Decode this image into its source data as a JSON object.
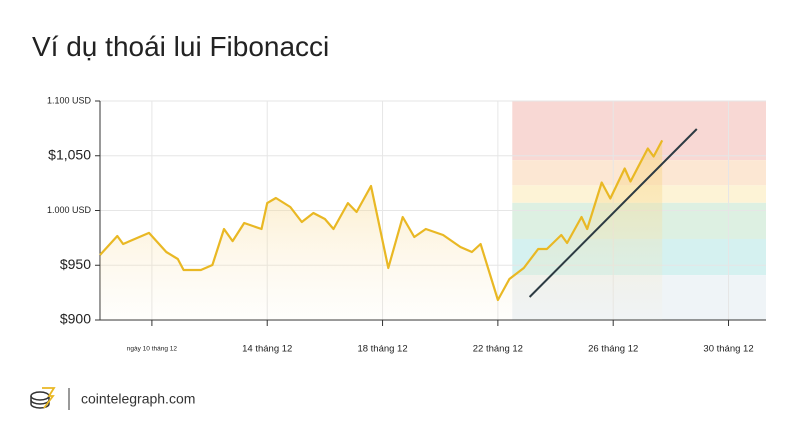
{
  "chart_data": {
    "type": "line",
    "title": "Ví dụ thoái lui Fibonacci",
    "x": [
      8.2,
      8.8,
      9.0,
      9.9,
      10.5,
      10.9,
      11.1,
      11.7,
      12.1,
      12.5,
      12.8,
      13.2,
      13.8,
      14.0,
      14.3,
      14.8,
      15.2,
      15.6,
      16.0,
      16.3,
      16.8,
      17.1,
      17.6,
      18.2,
      18.7,
      19.1,
      19.5,
      20.1,
      20.7,
      21.1,
      21.4,
      22.0,
      22.4,
      22.9,
      23.4,
      23.7,
      24.2,
      24.4,
      24.9,
      25.1,
      25.6,
      25.9,
      26.4,
      26.6,
      27.2,
      27.4,
      27.7
    ],
    "series": [
      {
        "color": "#e9b824",
        "values": [
          959.4,
          976.7,
          969.4,
          979.5,
          962.1,
          955.7,
          945.7,
          945.7,
          950.2,
          983.1,
          972.1,
          988.6,
          983.1,
          1006.8,
          1011.4,
          1003.2,
          989.5,
          997.7,
          992.2,
          983.1,
          1006.8,
          998.6,
          1022.4,
          947.5,
          994.1,
          975.8,
          983.1,
          977.6,
          966.7,
          962.1,
          969.4,
          918.3,
          937.4,
          947.5,
          964.8,
          964.8,
          977.6,
          970.3,
          994.1,
          983.1,
          1025.6,
          1011.0,
          1038.4,
          1026.5,
          1056.6,
          1049.3,
          1064.0
        ]
      }
    ],
    "trend": {
      "color": "#2d3b43",
      "x": [
        23.1,
        28.9
      ],
      "values": [
        921.0,
        1074.4
      ]
    },
    "band_start": 22.5,
    "bands": [
      {
        "from": 1046,
        "to": 1100,
        "color": "#f8d8d4"
      },
      {
        "from": 1023,
        "to": 1046,
        "color": "#fce7d3"
      },
      {
        "from": 1007,
        "to": 1023,
        "color": "#fdf3d6"
      },
      {
        "from": 974,
        "to": 1007,
        "color": "#ddf0e2"
      },
      {
        "from": 941,
        "to": 974,
        "color": "#d5f1f0"
      },
      {
        "from": 900,
        "to": 941,
        "color": "#eff4f7"
      }
    ],
    "xlim": [
      8.2,
      31.3
    ],
    "ylim": [
      900,
      1100
    ],
    "xticks": [
      {
        "value": 10,
        "label": "ngày 10 tháng 12"
      },
      {
        "value": 14,
        "label": "14 tháng 12"
      },
      {
        "value": 18,
        "label": "18 tháng 12"
      },
      {
        "value": 22,
        "label": "22 tháng 12"
      },
      {
        "value": 26,
        "label": "26 tháng 12"
      },
      {
        "value": 30,
        "label": "30 tháng 12"
      }
    ],
    "yticks": [
      {
        "value": 900,
        "label": "$900"
      },
      {
        "value": 950,
        "label": "$950"
      },
      {
        "value": 1000,
        "label": "1.000 USD"
      },
      {
        "value": 1050,
        "label": "$1,050"
      },
      {
        "value": 1100,
        "label": "1.100 USD"
      }
    ],
    "grid": true
  },
  "footer": {
    "site": "cointelegraph.com"
  }
}
